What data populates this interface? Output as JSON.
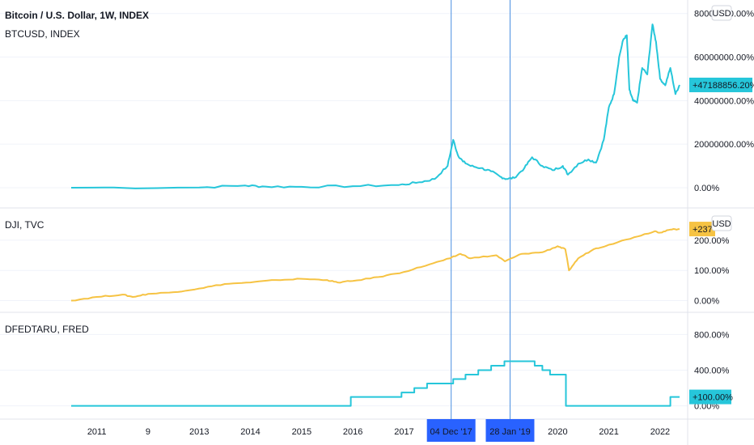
{
  "chart_data": {
    "type": "line",
    "title": "Bitcoin / U.S. Dollar, 1W, INDEX",
    "x_ticks": [
      "2011",
      "9",
      "2013",
      "2014",
      "2015",
      "2016",
      "2017",
      "04 Dec '17",
      "28 Jan '19",
      "2020",
      "2021",
      "2022"
    ],
    "x_tick_years": [
      2011.0,
      2012.0,
      2013.0,
      2014.0,
      2015.0,
      2016.0,
      2017.0,
      2017.92,
      2019.07,
      2020.0,
      2021.0,
      2022.0
    ],
    "crosshair_dates": [
      "04 Dec '17",
      "28 Jan '19"
    ],
    "crosshair_years": [
      2017.92,
      2019.07
    ],
    "panes": [
      {
        "id": "btc",
        "label": "BTCUSD, INDEX",
        "color": "#26c6da",
        "unit_badge": "USD",
        "yticks": [
          "80000000.00%",
          "60000000.00%",
          "40000000.00%",
          "20000000.00%",
          "0.00%"
        ],
        "ytick_values": [
          80000000,
          60000000,
          40000000,
          20000000,
          0
        ],
        "ylim": [
          -1500000,
          81000000
        ],
        "last_value_label": "+47188856.20%",
        "last_value": 47188856.2,
        "series": {
          "name": "BTCUSD, INDEX",
          "x": [
            2010.5,
            2013.0,
            2013.9,
            2014.3,
            2015.0,
            2016.0,
            2016.9,
            2017.3,
            2017.6,
            2017.85,
            2017.96,
            2018.05,
            2018.15,
            2018.3,
            2018.5,
            2018.7,
            2018.88,
            2019.0,
            2019.15,
            2019.35,
            2019.5,
            2019.7,
            2019.9,
            2020.1,
            2020.2,
            2020.4,
            2020.6,
            2020.75,
            2020.9,
            2021.0,
            2021.1,
            2021.2,
            2021.28,
            2021.35,
            2021.4,
            2021.47,
            2021.55,
            2021.65,
            2021.75,
            2021.85,
            2021.92,
            2022.0,
            2022.1,
            2022.2,
            2022.3,
            2022.38
          ],
          "values": [
            0,
            100000,
            1000000,
            500000,
            400000,
            700000,
            1200000,
            2500000,
            4000000,
            10000000,
            22000000,
            15000000,
            12000000,
            10000000,
            9000000,
            7500000,
            5000000,
            4000000,
            4500000,
            9000000,
            14000000,
            10000000,
            8000000,
            10000000,
            6000000,
            11000000,
            13000000,
            11500000,
            22000000,
            37000000,
            43000000,
            60000000,
            68000000,
            70000000,
            45000000,
            40000000,
            39000000,
            55000000,
            52000000,
            75000000,
            67000000,
            50000000,
            47000000,
            55000000,
            43000000,
            47188856.2
          ]
        }
      },
      {
        "id": "dji",
        "label": "DJI, TVC",
        "color": "#f6c343",
        "unit_badge": "USD",
        "yticks": [
          "200.00%",
          "100.00%",
          "0.00%"
        ],
        "ytick_values": [
          200,
          100,
          0
        ],
        "ylim": [
          -12,
          272
        ],
        "last_value_label": "+237",
        "last_value": 237,
        "series": {
          "name": "DJI, TVC",
          "x": [
            2010.5,
            2011.0,
            2011.5,
            2011.7,
            2012.0,
            2012.5,
            2013.0,
            2013.5,
            2014.0,
            2014.5,
            2015.0,
            2015.5,
            2015.7,
            2016.0,
            2016.5,
            2017.0,
            2017.5,
            2017.9,
            2018.1,
            2018.3,
            2018.8,
            2018.97,
            2019.3,
            2019.7,
            2020.0,
            2020.15,
            2020.22,
            2020.4,
            2020.7,
            2021.0,
            2021.5,
            2021.9,
            2022.0,
            2022.2,
            2022.38
          ],
          "values": [
            0,
            12,
            20,
            12,
            22,
            28,
            40,
            55,
            60,
            68,
            72,
            68,
            60,
            65,
            78,
            95,
            120,
            140,
            155,
            140,
            150,
            130,
            155,
            160,
            180,
            170,
            100,
            140,
            170,
            185,
            210,
            230,
            225,
            235,
            237
          ]
        }
      },
      {
        "id": "fed",
        "label": "DFEDTARU, FRED",
        "color": "#26c6da",
        "unit_badge": "",
        "yticks": [
          "800.00%",
          "400.00%",
          "0.00%"
        ],
        "ytick_values": [
          800,
          400,
          0
        ],
        "ylim": [
          -40,
          940
        ],
        "last_value_label": "+100.00%",
        "last_value": 100,
        "series": {
          "name": "DFEDTARU, FRED",
          "x": [
            2010.5,
            2015.96,
            2016.95,
            2017.2,
            2017.45,
            2017.96,
            2018.2,
            2018.45,
            2018.7,
            2018.96,
            2019.55,
            2019.7,
            2019.85,
            2020.16,
            2022.2,
            2022.38
          ],
          "values": [
            0,
            100,
            150,
            200,
            250,
            300,
            350,
            400,
            450,
            500,
            450,
            400,
            350,
            0,
            100,
            100
          ]
        }
      }
    ],
    "grid": true,
    "legend": "none"
  }
}
